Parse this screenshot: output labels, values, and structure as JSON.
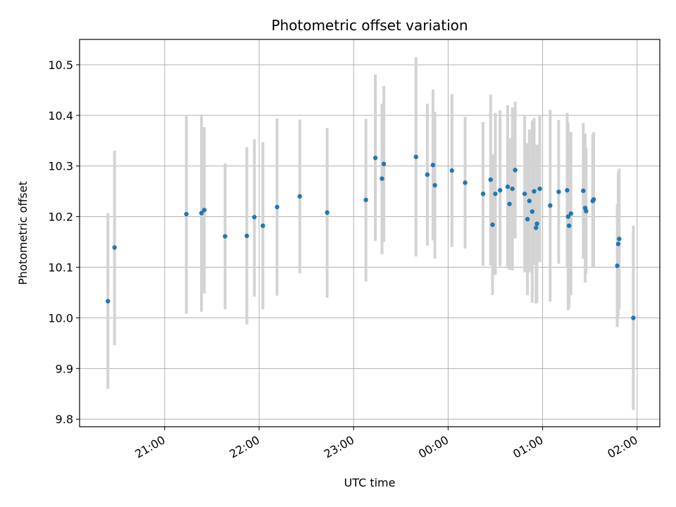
{
  "chart_data": {
    "type": "scatter",
    "title": "Photometric offset variation",
    "xlabel": "UTC time",
    "ylabel": "Photometric offset",
    "x_ticks": [
      "21:00",
      "22:00",
      "23:00",
      "00:00",
      "01:00",
      "02:00"
    ],
    "y_ticks": [
      "9.8",
      "9.9",
      "10.0",
      "10.1",
      "10.2",
      "10.3",
      "10.4",
      "10.5"
    ],
    "x_unit_note": "hours after 20:00 UTC",
    "xlim": [
      20.1,
      26.24
    ],
    "ylim": [
      9.785,
      10.55
    ],
    "grid": true,
    "colors": {
      "point": "#1f77b4",
      "errorbar": "#d3d3d3",
      "grid": "#b0b0b0"
    },
    "points": [
      {
        "x": 20.4,
        "y": 10.033,
        "lo": 9.86,
        "hi": 10.207
      },
      {
        "x": 20.47,
        "y": 10.139,
        "lo": 9.946,
        "hi": 10.33
      },
      {
        "x": 21.23,
        "y": 10.205,
        "lo": 10.008,
        "hi": 10.401
      },
      {
        "x": 21.39,
        "y": 10.207,
        "lo": 10.012,
        "hi": 10.402
      },
      {
        "x": 21.42,
        "y": 10.213,
        "lo": 10.048,
        "hi": 10.377
      },
      {
        "x": 21.64,
        "y": 10.161,
        "lo": 10.017,
        "hi": 10.305
      },
      {
        "x": 21.87,
        "y": 10.162,
        "lo": 9.987,
        "hi": 10.337
      },
      {
        "x": 21.95,
        "y": 10.199,
        "lo": 10.042,
        "hi": 10.353
      },
      {
        "x": 22.04,
        "y": 10.182,
        "lo": 10.017,
        "hi": 10.347
      },
      {
        "x": 22.19,
        "y": 10.219,
        "lo": 10.044,
        "hi": 10.394
      },
      {
        "x": 22.43,
        "y": 10.24,
        "lo": 10.088,
        "hi": 10.392
      },
      {
        "x": 22.72,
        "y": 10.208,
        "lo": 10.04,
        "hi": 10.375
      },
      {
        "x": 23.13,
        "y": 10.233,
        "lo": 10.072,
        "hi": 10.393
      },
      {
        "x": 23.23,
        "y": 10.316,
        "lo": 10.152,
        "hi": 10.481
      },
      {
        "x": 23.3,
        "y": 10.275,
        "lo": 10.126,
        "hi": 10.423
      },
      {
        "x": 23.32,
        "y": 10.304,
        "lo": 10.15,
        "hi": 10.458
      },
      {
        "x": 23.66,
        "y": 10.318,
        "lo": 10.121,
        "hi": 10.515
      },
      {
        "x": 23.78,
        "y": 10.283,
        "lo": 10.143,
        "hi": 10.423
      },
      {
        "x": 23.84,
        "y": 10.302,
        "lo": 10.153,
        "hi": 10.451
      },
      {
        "x": 23.86,
        "y": 10.262,
        "lo": 10.117,
        "hi": 10.407
      },
      {
        "x": 24.04,
        "y": 10.291,
        "lo": 10.14,
        "hi": 10.442
      },
      {
        "x": 24.18,
        "y": 10.267,
        "lo": 10.137,
        "hi": 10.397
      },
      {
        "x": 24.37,
        "y": 10.245,
        "lo": 10.103,
        "hi": 10.387
      },
      {
        "x": 24.45,
        "y": 10.273,
        "lo": 10.104,
        "hi": 10.441
      },
      {
        "x": 24.47,
        "y": 10.184,
        "lo": 10.045,
        "hi": 10.323
      },
      {
        "x": 24.5,
        "y": 10.245,
        "lo": 10.085,
        "hi": 10.405
      },
      {
        "x": 24.55,
        "y": 10.252,
        "lo": 10.102,
        "hi": 10.41
      },
      {
        "x": 24.63,
        "y": 10.259,
        "lo": 10.098,
        "hi": 10.42
      },
      {
        "x": 24.65,
        "y": 10.225,
        "lo": 10.095,
        "hi": 10.355
      },
      {
        "x": 24.68,
        "y": 10.255,
        "lo": 10.094,
        "hi": 10.416
      },
      {
        "x": 24.71,
        "y": 10.292,
        "lo": 10.157,
        "hi": 10.427
      },
      {
        "x": 24.81,
        "y": 10.245,
        "lo": 10.09,
        "hi": 10.4
      },
      {
        "x": 24.84,
        "y": 10.195,
        "lo": 10.045,
        "hi": 10.345
      },
      {
        "x": 24.86,
        "y": 10.231,
        "lo": 10.09,
        "hi": 10.372
      },
      {
        "x": 24.89,
        "y": 10.21,
        "lo": 10.03,
        "hi": 10.39
      },
      {
        "x": 24.91,
        "y": 10.25,
        "lo": 10.105,
        "hi": 10.395
      },
      {
        "x": 24.93,
        "y": 10.178,
        "lo": 10.028,
        "hi": 10.328
      },
      {
        "x": 24.94,
        "y": 10.186,
        "lo": 10.03,
        "hi": 10.342
      },
      {
        "x": 24.97,
        "y": 10.255,
        "lo": 10.11,
        "hi": 10.4
      },
      {
        "x": 25.08,
        "y": 10.222,
        "lo": 10.032,
        "hi": 10.411
      },
      {
        "x": 25.17,
        "y": 10.249,
        "lo": 10.107,
        "hi": 10.391
      },
      {
        "x": 25.26,
        "y": 10.252,
        "lo": 10.1,
        "hi": 10.405
      },
      {
        "x": 25.27,
        "y": 10.2,
        "lo": 10.015,
        "hi": 10.385
      },
      {
        "x": 25.28,
        "y": 10.182,
        "lo": 10.02,
        "hi": 10.344
      },
      {
        "x": 25.3,
        "y": 10.206,
        "lo": 10.045,
        "hi": 10.367
      },
      {
        "x": 25.43,
        "y": 10.251,
        "lo": 10.117,
        "hi": 10.385
      },
      {
        "x": 25.45,
        "y": 10.217,
        "lo": 10.07,
        "hi": 10.364
      },
      {
        "x": 25.46,
        "y": 10.211,
        "lo": 10.087,
        "hi": 10.335
      },
      {
        "x": 25.53,
        "y": 10.231,
        "lo": 10.1,
        "hi": 10.362
      },
      {
        "x": 25.54,
        "y": 10.234,
        "lo": 10.101,
        "hi": 10.367
      },
      {
        "x": 25.79,
        "y": 10.103,
        "lo": 9.982,
        "hi": 10.224
      },
      {
        "x": 25.8,
        "y": 10.146,
        "lo": 10.004,
        "hi": 10.288
      },
      {
        "x": 25.81,
        "y": 10.156,
        "lo": 10.017,
        "hi": 10.295
      },
      {
        "x": 25.96,
        "y": 10.0,
        "lo": 9.818,
        "hi": 10.182
      }
    ]
  }
}
